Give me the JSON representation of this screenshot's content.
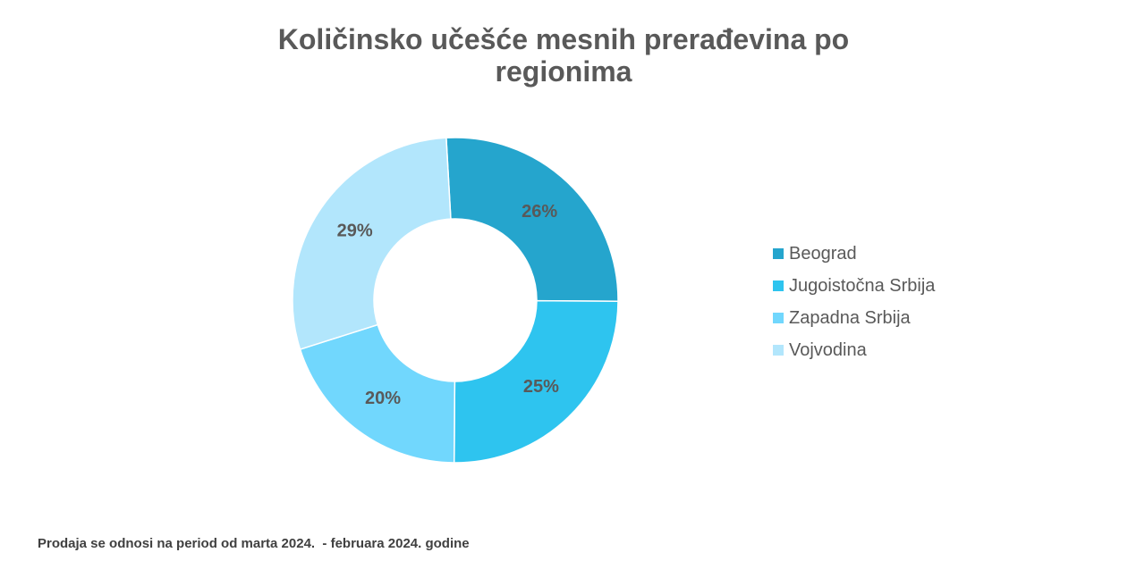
{
  "chart_data": {
    "type": "pie",
    "variant": "donut",
    "title": "Količinsko učešće mesnih prerađevina po regionima",
    "categories": [
      "Beograd",
      "Jugoistočna Srbija",
      "Zapadna Srbija",
      "Vojvodina"
    ],
    "values": [
      26,
      25,
      20,
      29
    ],
    "labels": [
      "26%",
      "25%",
      "20%",
      "29%"
    ],
    "colors": [
      "#25A5CD",
      "#2EC4EF",
      "#71D7FD",
      "#B2E6FC"
    ],
    "legend_position": "right",
    "grid": false
  },
  "footnote": "Prodaja se odnosi na period od marta 2024.  - februara 2024. godine"
}
